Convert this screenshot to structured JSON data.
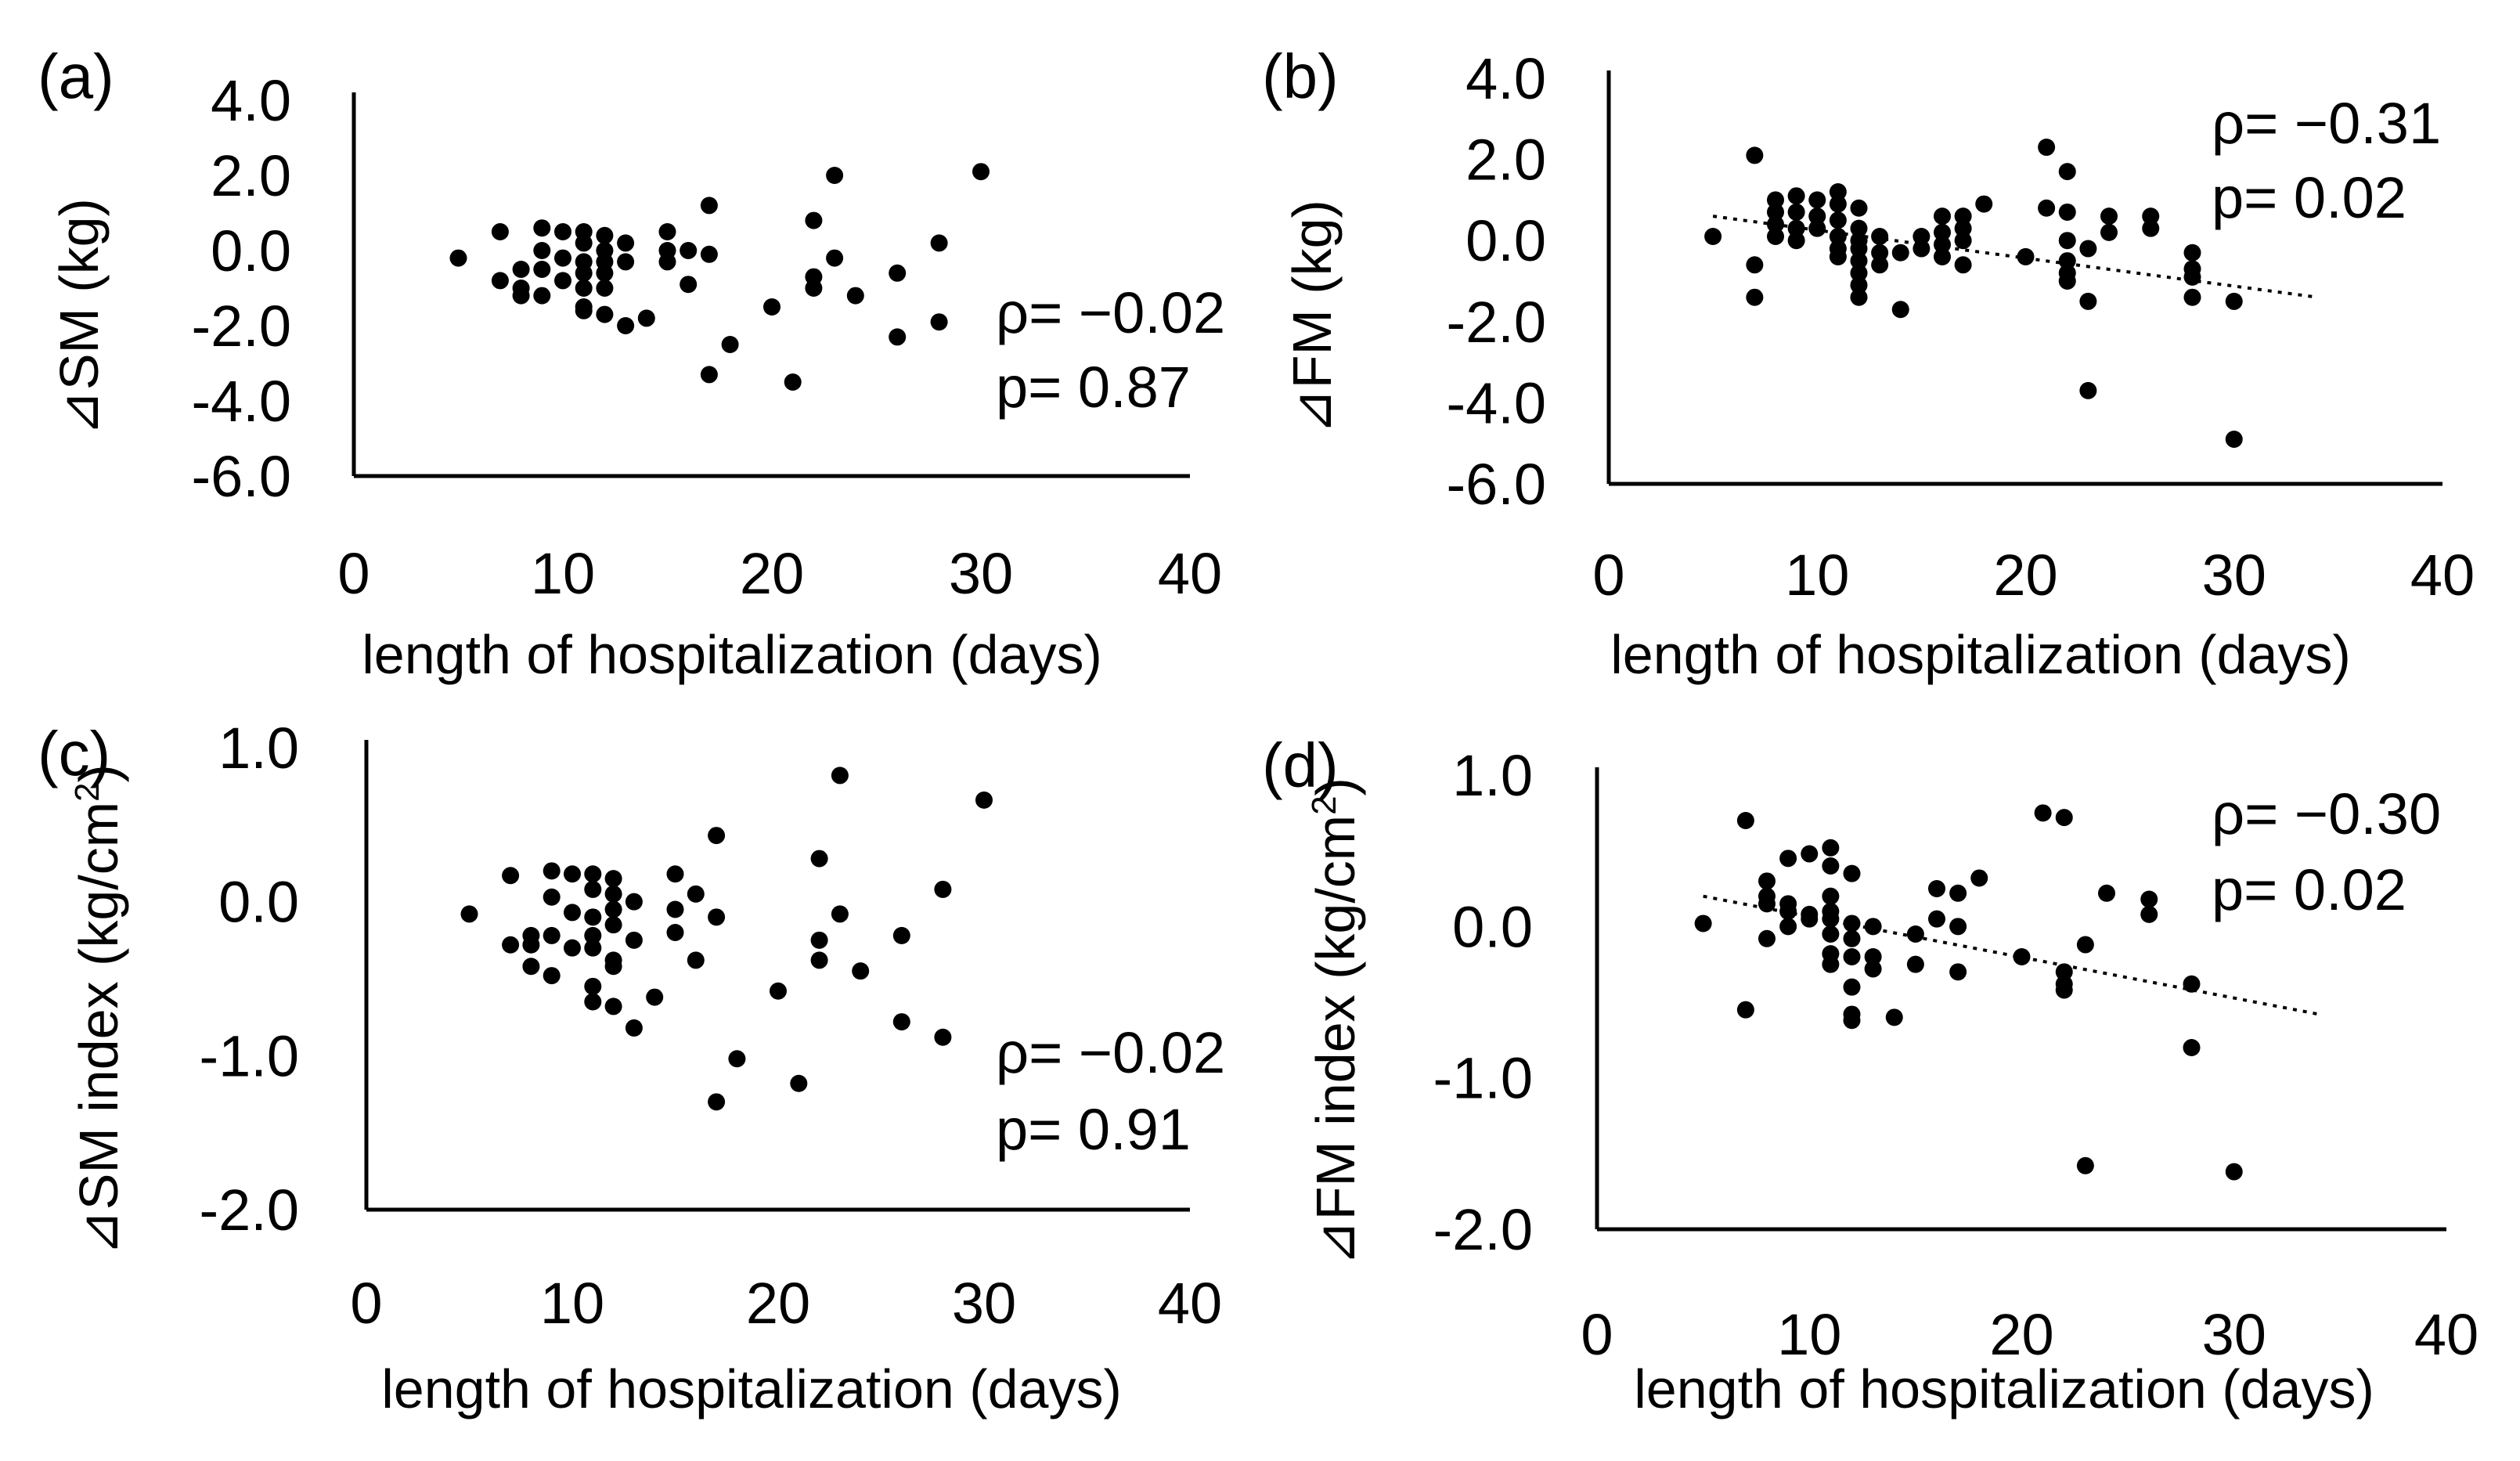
{
  "chart_data": [
    {
      "id": "a",
      "type": "scatter",
      "panel_label": "(a)",
      "xlabel": "length of hospitalization (days)",
      "ylabel": "⊿SM (kg)",
      "ylabel_sup": "",
      "ylabel_tail": "",
      "xlim": [
        0,
        40
      ],
      "ylim": [
        -6,
        4
      ],
      "xticks": [
        0,
        10,
        20,
        30,
        40
      ],
      "xtick_labels": [
        "0",
        "10",
        "20",
        "30",
        "40"
      ],
      "yticks": [
        4,
        2,
        0,
        -2,
        -4,
        -6
      ],
      "ytick_labels": [
        "4.0",
        "2.0",
        "0.0",
        "-2.0",
        "-4.0",
        "-6.0"
      ],
      "stats": [
        "ρ= −0.02",
        "p= 0.87"
      ],
      "trendline": null,
      "points": [
        [
          5,
          -0.2
        ],
        [
          7,
          0.5
        ],
        [
          7,
          -0.8
        ],
        [
          8,
          -0.5
        ],
        [
          8,
          -1.0
        ],
        [
          8,
          -1.2
        ],
        [
          9,
          0.6
        ],
        [
          9,
          0.0
        ],
        [
          9,
          -0.5
        ],
        [
          9,
          -1.2
        ],
        [
          10,
          0.5
        ],
        [
          10,
          -0.2
        ],
        [
          10,
          -0.8
        ],
        [
          11,
          0.5
        ],
        [
          11,
          0.2
        ],
        [
          11,
          -0.3
        ],
        [
          11,
          -0.6
        ],
        [
          11,
          -1.0
        ],
        [
          11,
          -1.5
        ],
        [
          11,
          -1.6
        ],
        [
          12,
          0.4
        ],
        [
          12,
          0.0
        ],
        [
          12,
          -0.3
        ],
        [
          12,
          -0.6
        ],
        [
          12,
          -1.0
        ],
        [
          12,
          -1.7
        ],
        [
          13,
          0.2
        ],
        [
          13,
          -0.3
        ],
        [
          13,
          -2.0
        ],
        [
          14,
          -1.8
        ],
        [
          15,
          0.5
        ],
        [
          15,
          0.0
        ],
        [
          15,
          -0.3
        ],
        [
          16,
          0.0
        ],
        [
          16,
          -0.9
        ],
        [
          17,
          1.2
        ],
        [
          17,
          -0.1
        ],
        [
          17,
          -3.3
        ],
        [
          18,
          -2.5
        ],
        [
          20,
          -1.5
        ],
        [
          21,
          -3.5
        ],
        [
          22,
          0.8
        ],
        [
          22,
          -0.7
        ],
        [
          22,
          -1.0
        ],
        [
          23,
          2.0
        ],
        [
          23,
          -0.2
        ],
        [
          24,
          -1.2
        ],
        [
          26,
          -0.6
        ],
        [
          26,
          -2.3
        ],
        [
          28,
          0.2
        ],
        [
          28,
          -1.9
        ],
        [
          30,
          2.1
        ]
      ]
    },
    {
      "id": "b",
      "type": "scatter",
      "panel_label": "(b)",
      "xlabel": "length of hospitalization (days)",
      "ylabel": "⊿FM (kg)",
      "ylabel_sup": "",
      "ylabel_tail": "",
      "xlim": [
        0,
        40
      ],
      "ylim": [
        -6,
        4
      ],
      "xticks": [
        0,
        10,
        20,
        30,
        40
      ],
      "xtick_labels": [
        "0",
        "10",
        "20",
        "30",
        "40"
      ],
      "yticks": [
        4,
        2,
        0,
        -2,
        -4,
        -6
      ],
      "ytick_labels": [
        "4.0",
        "2.0",
        "0.0",
        "-2.0",
        "-4.0",
        "-6.0"
      ],
      "stats": [
        "ρ= −0.31",
        "p= 0.02"
      ],
      "trendline": [
        [
          5,
          0.6
        ],
        [
          34,
          -1.4
        ]
      ],
      "points": [
        [
          5,
          0.1
        ],
        [
          7,
          2.1
        ],
        [
          7,
          -0.6
        ],
        [
          7,
          -1.4
        ],
        [
          8,
          1.0
        ],
        [
          8,
          0.7
        ],
        [
          8,
          0.4
        ],
        [
          8,
          0.1
        ],
        [
          9,
          1.1
        ],
        [
          9,
          0.7
        ],
        [
          9,
          0.3
        ],
        [
          9,
          0.0
        ],
        [
          10,
          1.0
        ],
        [
          10,
          0.6
        ],
        [
          10,
          0.3
        ],
        [
          11,
          1.2
        ],
        [
          11,
          0.9
        ],
        [
          11,
          0.5
        ],
        [
          11,
          0.1
        ],
        [
          11,
          -0.2
        ],
        [
          11,
          -0.4
        ],
        [
          12,
          0.8
        ],
        [
          12,
          0.3
        ],
        [
          12,
          0.0
        ],
        [
          12,
          -0.2
        ],
        [
          12,
          -0.5
        ],
        [
          12,
          -0.8
        ],
        [
          12,
          -1.1
        ],
        [
          12,
          -1.4
        ],
        [
          13,
          0.1
        ],
        [
          13,
          -0.3
        ],
        [
          13,
          -0.6
        ],
        [
          14,
          -0.3
        ],
        [
          14,
          -1.7
        ],
        [
          15,
          0.1
        ],
        [
          15,
          -0.2
        ],
        [
          16,
          0.6
        ],
        [
          16,
          0.2
        ],
        [
          16,
          -0.1
        ],
        [
          16,
          -0.4
        ],
        [
          17,
          0.6
        ],
        [
          17,
          0.3
        ],
        [
          17,
          0.0
        ],
        [
          17,
          -0.6
        ],
        [
          18,
          0.9
        ],
        [
          20,
          -0.4
        ],
        [
          21,
          2.3
        ],
        [
          21,
          0.8
        ],
        [
          22,
          1.7
        ],
        [
          22,
          0.7
        ],
        [
          22,
          0.0
        ],
        [
          22,
          -0.5
        ],
        [
          22,
          -0.8
        ],
        [
          22,
          -1.0
        ],
        [
          23,
          -0.2
        ],
        [
          23,
          -1.5
        ],
        [
          23,
          -3.7
        ],
        [
          24,
          0.6
        ],
        [
          24,
          0.2
        ],
        [
          26,
          0.6
        ],
        [
          26,
          0.3
        ],
        [
          28,
          -0.3
        ],
        [
          28,
          -0.7
        ],
        [
          28,
          -0.9
        ],
        [
          28,
          -1.4
        ],
        [
          30,
          -1.5
        ],
        [
          30,
          -4.9
        ]
      ]
    },
    {
      "id": "c",
      "type": "scatter",
      "panel_label": "(c)",
      "xlabel": "length of hospitalization (days)",
      "ylabel": "⊿SM index (kg/cm",
      "ylabel_sup": "2",
      "ylabel_tail": ")",
      "xlim": [
        0,
        40
      ],
      "ylim": [
        -2,
        1
      ],
      "xticks": [
        0,
        10,
        20,
        30,
        40
      ],
      "xtick_labels": [
        "0",
        "10",
        "20",
        "30",
        "40"
      ],
      "yticks": [
        1,
        0,
        -1,
        -2
      ],
      "ytick_labels": [
        "1.0",
        "0.0",
        "-1.0",
        "-2.0"
      ],
      "stats": [
        "ρ= −0.02",
        "p= 0.91"
      ],
      "trendline": null,
      "points": [
        [
          5,
          -0.08
        ],
        [
          7,
          0.17
        ],
        [
          7,
          -0.28
        ],
        [
          8,
          -0.22
        ],
        [
          8,
          -0.28
        ],
        [
          8,
          -0.42
        ],
        [
          9,
          0.2
        ],
        [
          9,
          0.03
        ],
        [
          9,
          -0.22
        ],
        [
          9,
          -0.48
        ],
        [
          10,
          0.18
        ],
        [
          10,
          -0.07
        ],
        [
          10,
          -0.3
        ],
        [
          11,
          0.18
        ],
        [
          11,
          0.08
        ],
        [
          11,
          -0.1
        ],
        [
          11,
          -0.22
        ],
        [
          11,
          -0.3
        ],
        [
          11,
          -0.55
        ],
        [
          11,
          -0.65
        ],
        [
          12,
          0.15
        ],
        [
          12,
          0.05
        ],
        [
          12,
          -0.05
        ],
        [
          12,
          -0.15
        ],
        [
          12,
          -0.38
        ],
        [
          12,
          -0.42
        ],
        [
          12,
          -0.68
        ],
        [
          13,
          0.0
        ],
        [
          13,
          -0.25
        ],
        [
          13,
          -0.82
        ],
        [
          14,
          -0.62
        ],
        [
          15,
          0.18
        ],
        [
          15,
          -0.05
        ],
        [
          15,
          -0.2
        ],
        [
          16,
          0.05
        ],
        [
          16,
          -0.38
        ],
        [
          17,
          0.43
        ],
        [
          17,
          -0.1
        ],
        [
          17,
          -1.3
        ],
        [
          18,
          -1.02
        ],
        [
          20,
          -0.58
        ],
        [
          21,
          -1.18
        ],
        [
          22,
          0.28
        ],
        [
          22,
          -0.25
        ],
        [
          22,
          -0.38
        ],
        [
          23,
          0.82
        ],
        [
          23,
          -0.08
        ],
        [
          24,
          -0.45
        ],
        [
          26,
          -0.22
        ],
        [
          26,
          -0.78
        ],
        [
          28,
          0.08
        ],
        [
          28,
          -0.88
        ],
        [
          30,
          0.66
        ]
      ]
    },
    {
      "id": "d",
      "type": "scatter",
      "panel_label": "(d)",
      "xlabel": "length of hospitalization (days)",
      "ylabel": "⊿FM index (kg/cm",
      "ylabel_sup": "2",
      "ylabel_tail": ")",
      "xlim": [
        0,
        40
      ],
      "ylim": [
        -2,
        1
      ],
      "xticks": [
        0,
        10,
        20,
        30,
        40
      ],
      "xtick_labels": [
        "0",
        "10",
        "20",
        "30",
        "40"
      ],
      "yticks": [
        1,
        0,
        -1,
        -2
      ],
      "ytick_labels": [
        "1.0",
        "0.0",
        "-1.0",
        "-2.0"
      ],
      "stats": [
        "ρ= −0.30",
        "p= 0.02"
      ],
      "trendline": [
        [
          5,
          0.2
        ],
        [
          34,
          -0.58
        ]
      ],
      "points": [
        [
          5,
          0.02
        ],
        [
          7,
          0.7
        ],
        [
          7,
          -0.55
        ],
        [
          8,
          0.3
        ],
        [
          8,
          0.2
        ],
        [
          8,
          0.15
        ],
        [
          8,
          -0.08
        ],
        [
          9,
          0.45
        ],
        [
          9,
          0.15
        ],
        [
          9,
          0.1
        ],
        [
          9,
          0.0
        ],
        [
          10,
          0.48
        ],
        [
          10,
          0.08
        ],
        [
          10,
          0.05
        ],
        [
          11,
          0.52
        ],
        [
          11,
          0.4
        ],
        [
          11,
          0.2
        ],
        [
          11,
          0.1
        ],
        [
          11,
          0.05
        ],
        [
          11,
          -0.05
        ],
        [
          11,
          -0.18
        ],
        [
          11,
          -0.25
        ],
        [
          12,
          0.35
        ],
        [
          12,
          0.02
        ],
        [
          12,
          -0.08
        ],
        [
          12,
          -0.2
        ],
        [
          12,
          -0.4
        ],
        [
          12,
          -0.58
        ],
        [
          12,
          -0.62
        ],
        [
          13,
          0.0
        ],
        [
          13,
          -0.2
        ],
        [
          13,
          -0.28
        ],
        [
          14,
          -0.6
        ],
        [
          15,
          -0.05
        ],
        [
          15,
          -0.25
        ],
        [
          16,
          0.25
        ],
        [
          16,
          0.05
        ],
        [
          17,
          0.22
        ],
        [
          17,
          0.0
        ],
        [
          17,
          -0.3
        ],
        [
          18,
          0.32
        ],
        [
          20,
          -0.2
        ],
        [
          21,
          0.75
        ],
        [
          22,
          0.72
        ],
        [
          22,
          -0.3
        ],
        [
          22,
          -0.38
        ],
        [
          22,
          -0.42
        ],
        [
          23,
          -0.12
        ],
        [
          23,
          -1.58
        ],
        [
          24,
          0.22
        ],
        [
          26,
          0.18
        ],
        [
          26,
          0.08
        ],
        [
          28,
          -0.38
        ],
        [
          28,
          -0.8
        ],
        [
          30,
          -1.62
        ]
      ]
    }
  ]
}
